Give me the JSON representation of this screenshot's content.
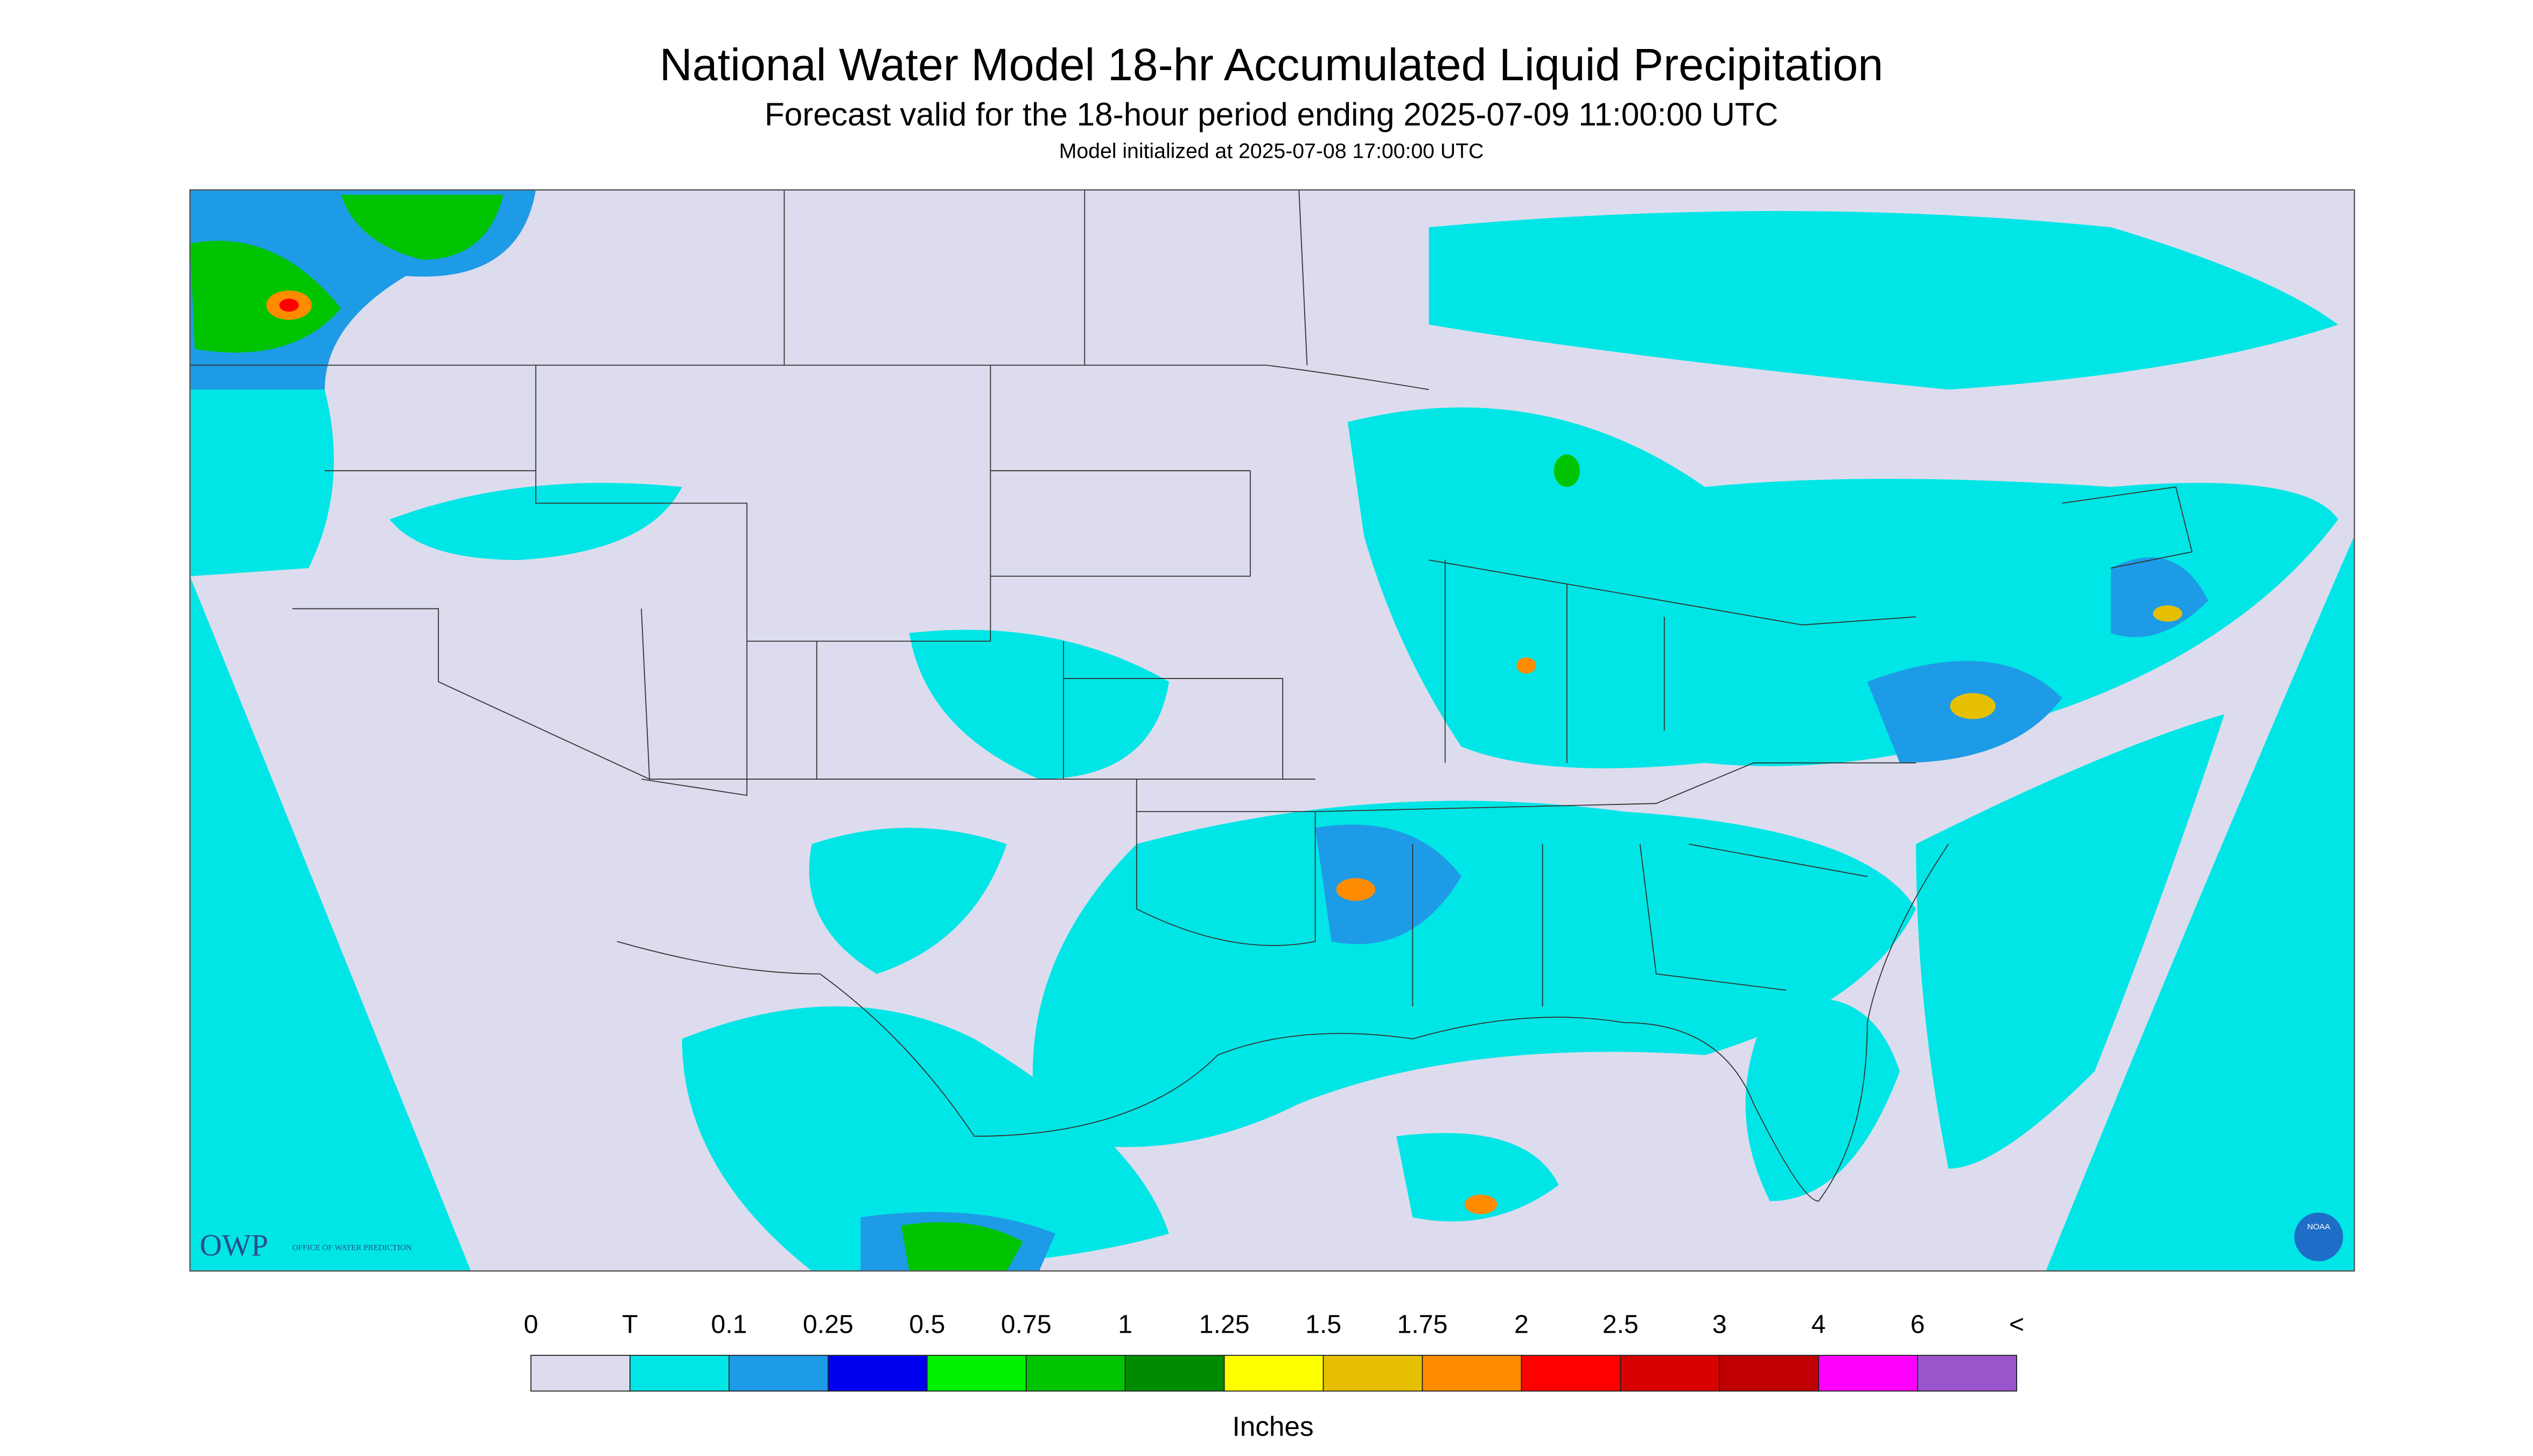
{
  "header": {
    "title": "National Water Model 18-hr Accumulated Liquid Precipitation",
    "subtitle": "Forecast valid for the 18-hour period ending 2025-07-09 11:00:00 UTC",
    "init": "Model initialized at 2025-07-08 17:00:00 UTC"
  },
  "legend": {
    "labels": [
      "0",
      "T",
      "0.1",
      "0.25",
      "0.5",
      "0.75",
      "1",
      "1.25",
      "1.5",
      "1.75",
      "2",
      "2.5",
      "3",
      "4",
      "6",
      "<"
    ],
    "colors": [
      "#dcdcee",
      "#00e6e6",
      "#1e9be6",
      "#0000f0",
      "#00f000",
      "#00c400",
      "#008c00",
      "#ffff00",
      "#e6c000",
      "#ff8c00",
      "#ff0000",
      "#d80000",
      "#c00000",
      "#ff00ff",
      "#9955cc"
    ],
    "unit": "Inches"
  },
  "logo": {
    "text": "OWP",
    "subtext": "OFFICE OF WATER PREDICTION",
    "badge": "NOAA"
  }
}
